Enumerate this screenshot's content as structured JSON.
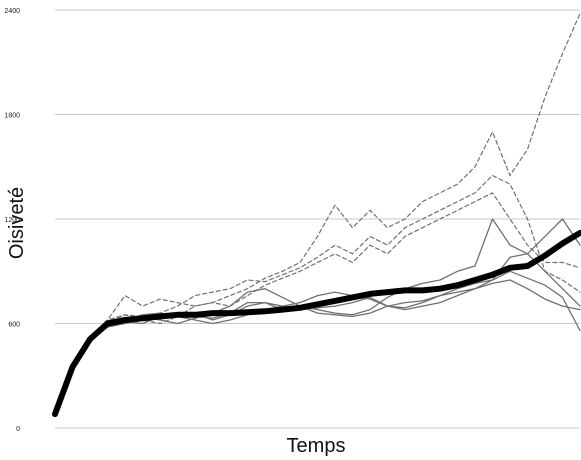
{
  "chart_data": {
    "type": "line",
    "xlabel": "Temps",
    "ylabel": "Oisiveté",
    "ylim": [
      0,
      2400
    ],
    "yticks": [
      0,
      600,
      1200,
      1800,
      2400
    ],
    "x_tick_labels": false,
    "grid": "horizontal",
    "colors": {
      "mean": "#000000",
      "solid": "#707070",
      "dashed": "#707070",
      "grid": "#c8c8c8"
    },
    "x": [
      0,
      1,
      2,
      3,
      4,
      5,
      6,
      7,
      8,
      9,
      10,
      11,
      12,
      13,
      14,
      15,
      16,
      17,
      18,
      19,
      20,
      21,
      22,
      23,
      24,
      25,
      26,
      27,
      28,
      29,
      30
    ],
    "series": [
      {
        "style": "mean",
        "values": [
          80,
          350,
          510,
          600,
          620,
          630,
          640,
          650,
          650,
          660,
          660,
          665,
          670,
          680,
          690,
          710,
          730,
          750,
          770,
          780,
          790,
          790,
          800,
          820,
          850,
          880,
          920,
          930,
          990,
          1060,
          1120
        ]
      },
      {
        "style": "solid",
        "values": [
          80,
          340,
          500,
          590,
          610,
          600,
          640,
          660,
          640,
          630,
          660,
          720,
          720,
          700,
          680,
          690,
          700,
          720,
          750,
          700,
          690,
          720,
          760,
          800,
          830,
          850,
          980,
          1000,
          1100,
          1200,
          1050
        ]
      },
      {
        "style": "solid",
        "values": [
          80,
          340,
          500,
          580,
          600,
          640,
          620,
          600,
          630,
          660,
          700,
          780,
          800,
          750,
          700,
          680,
          660,
          650,
          680,
          750,
          800,
          830,
          850,
          900,
          930,
          1200,
          1050,
          1000,
          900,
          800,
          700
        ]
      },
      {
        "style": "solid",
        "values": [
          80,
          340,
          500,
          580,
          600,
          620,
          640,
          650,
          660,
          620,
          650,
          700,
          720,
          680,
          700,
          660,
          650,
          640,
          660,
          700,
          720,
          730,
          760,
          780,
          800,
          850,
          900,
          860,
          820,
          750,
          560
        ]
      },
      {
        "style": "solid",
        "values": [
          80,
          340,
          500,
          590,
          620,
          650,
          660,
          640,
          620,
          600,
          620,
          650,
          680,
          700,
          720,
          760,
          780,
          760,
          740,
          700,
          680,
          700,
          720,
          760,
          800,
          830,
          850,
          800,
          740,
          700,
          680
        ]
      },
      {
        "style": "dashed",
        "values": [
          80,
          350,
          520,
          620,
          760,
          700,
          740,
          720,
          700,
          720,
          760,
          800,
          860,
          900,
          950,
          1100,
          1280,
          1150,
          1250,
          1150,
          1200,
          1300,
          1350,
          1400,
          1500,
          1700,
          1450,
          1600,
          1900,
          2150,
          2380
        ]
      },
      {
        "style": "dashed",
        "values": [
          80,
          350,
          520,
          620,
          650,
          640,
          660,
          700,
          760,
          780,
          800,
          850,
          840,
          880,
          920,
          980,
          1050,
          1000,
          1100,
          1050,
          1150,
          1200,
          1250,
          1300,
          1350,
          1450,
          1400,
          1200,
          900,
          850,
          780
        ]
      },
      {
        "style": "dashed",
        "values": [
          80,
          350,
          520,
          610,
          650,
          620,
          600,
          640,
          700,
          720,
          700,
          760,
          820,
          860,
          900,
          950,
          1000,
          950,
          1050,
          1000,
          1100,
          1150,
          1200,
          1250,
          1300,
          1350,
          1200,
          1050,
          950,
          950,
          920
        ]
      }
    ]
  }
}
